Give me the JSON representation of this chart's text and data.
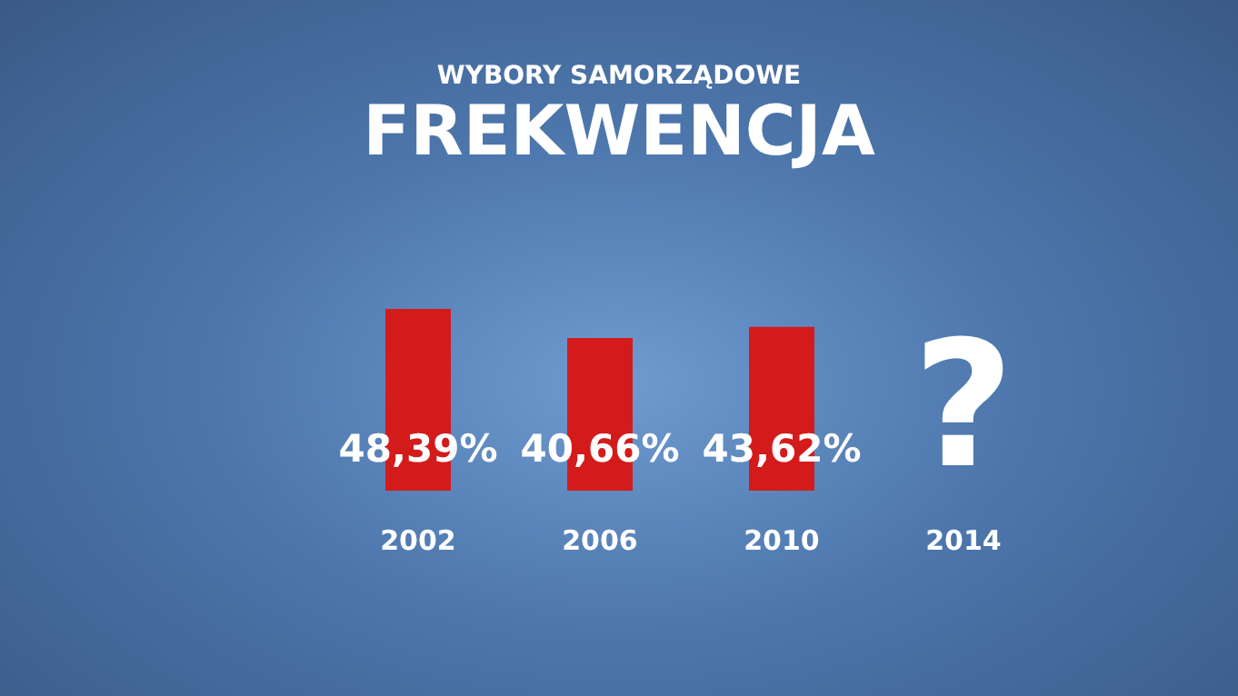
{
  "chart_data": {
    "type": "bar",
    "title": "FREKWENCJA",
    "subtitle": "WYBORY SAMORZĄDOWE",
    "categories": [
      "2002",
      "2006",
      "2010",
      "2014"
    ],
    "values": [
      48.39,
      40.66,
      43.62,
      null
    ],
    "value_labels": [
      "48,39%",
      "40,66%",
      "43,62%",
      "?"
    ],
    "color": "#d41b1b"
  }
}
